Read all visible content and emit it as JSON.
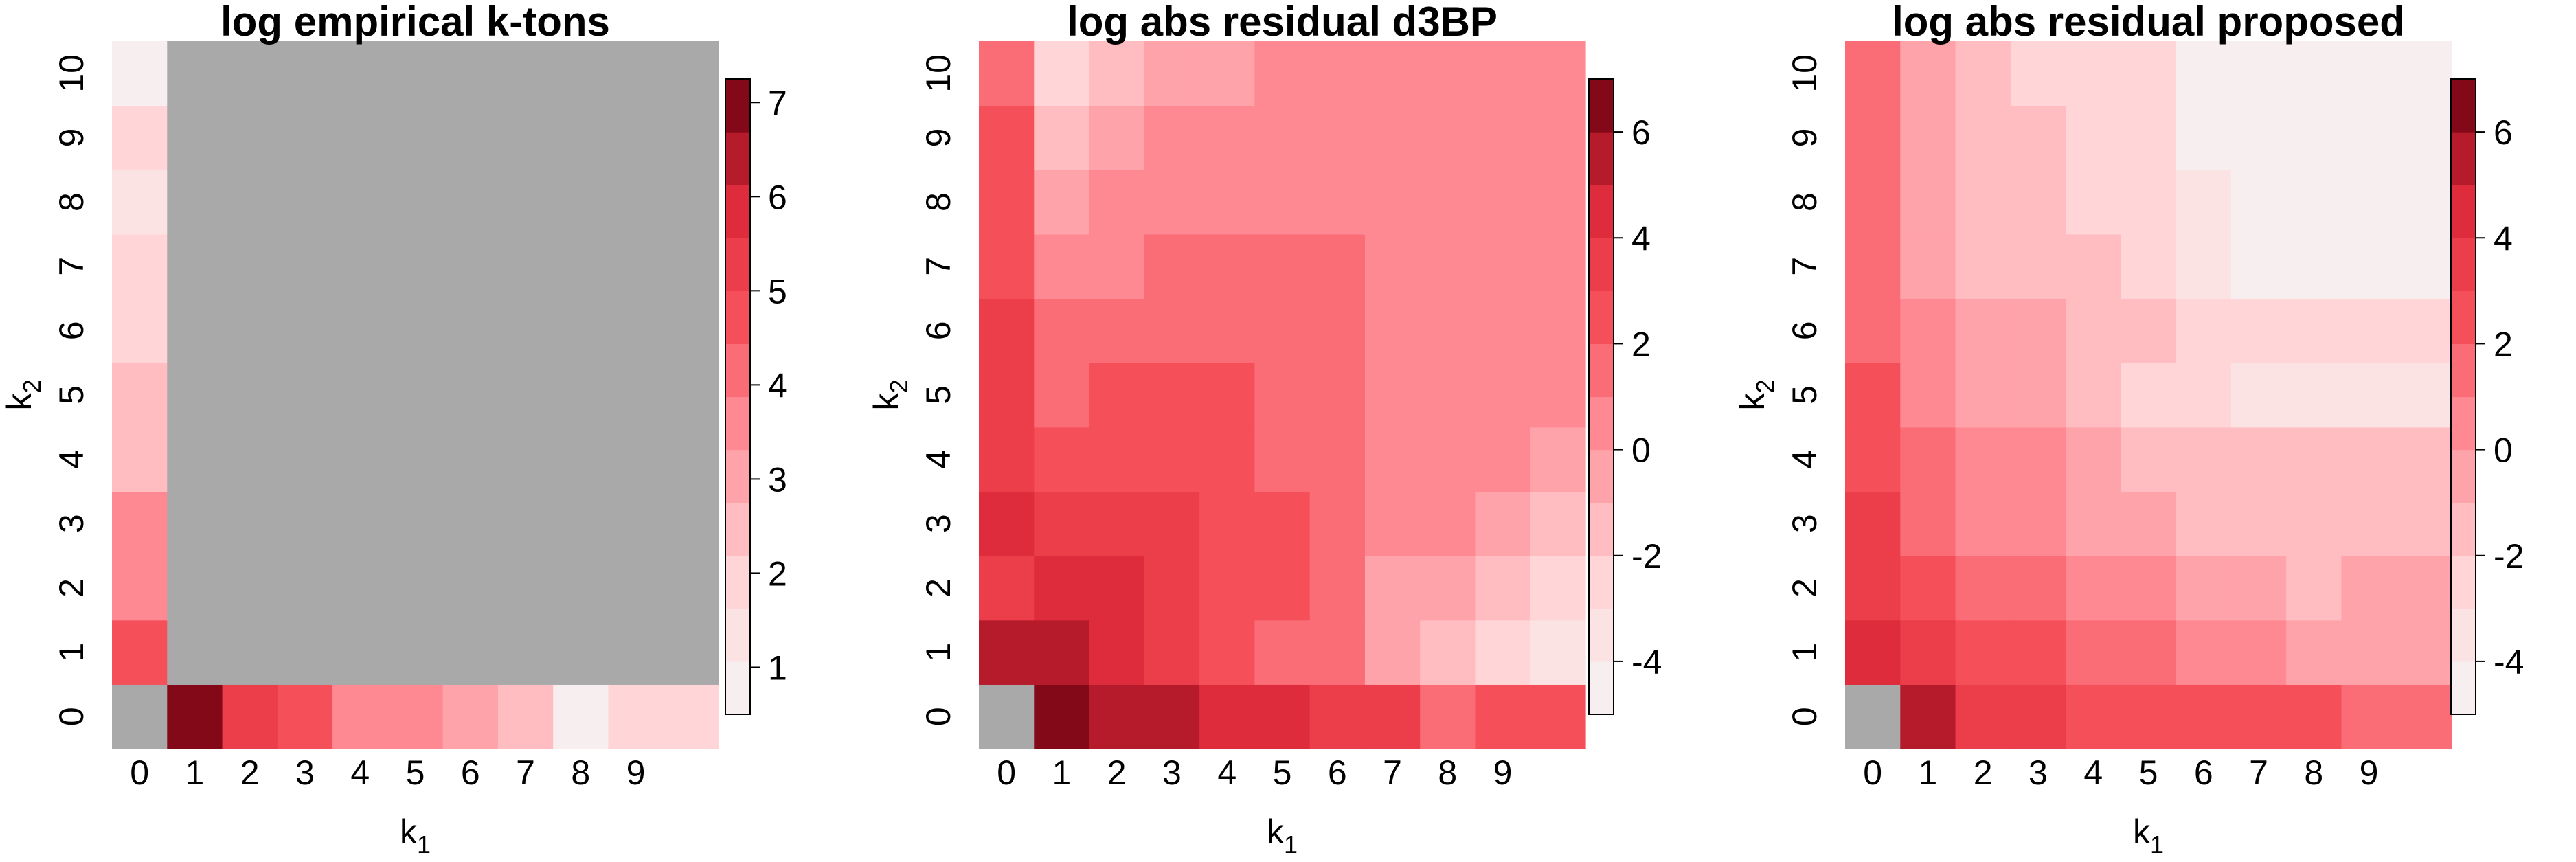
{
  "chart_data": [
    {
      "type": "heatmap",
      "title": "log empirical k-tons",
      "xlabel": "k",
      "xlabel_sub": "1",
      "ylabel": "k",
      "ylabel_sub": "2",
      "x_ticks": [
        "0",
        "1",
        "2",
        "3",
        "4",
        "5",
        "6",
        "7",
        "8",
        "9"
      ],
      "y_ticks": [
        "0",
        "1",
        "2",
        "3",
        "4",
        "5",
        "6",
        "7",
        "8",
        "9",
        "10"
      ],
      "colorbar": {
        "min": 0.5,
        "max": 7.25,
        "ticks": [
          1,
          2,
          3,
          4,
          5,
          6,
          7
        ],
        "tick_labels": [
          "1",
          "2",
          "3",
          "4",
          "5",
          "6",
          "7"
        ]
      },
      "na_color": "#a9a9a9",
      "cells": [
        {
          "x": 0,
          "y": 0,
          "value": null
        },
        {
          "x": 1,
          "y": 0,
          "value": 7.0
        },
        {
          "x": 2,
          "y": 0,
          "value": 5.4
        },
        {
          "x": 3,
          "y": 0,
          "value": 4.9
        },
        {
          "x": 4,
          "y": 0,
          "value": 3.8
        },
        {
          "x": 5,
          "y": 0,
          "value": 3.8
        },
        {
          "x": 6,
          "y": 0,
          "value": 3.2
        },
        {
          "x": 7,
          "y": 0,
          "value": 2.6
        },
        {
          "x": 8,
          "y": 0,
          "value": 0.7
        },
        {
          "x": 9,
          "y": 0,
          "value": 2.0
        },
        {
          "x": 10,
          "y": 0,
          "value": 2.0
        },
        {
          "x": 0,
          "y": 1,
          "value": 4.8
        },
        {
          "x": 0,
          "y": 2,
          "value": 3.7
        },
        {
          "x": 0,
          "y": 3,
          "value": 3.7
        },
        {
          "x": 0,
          "y": 4,
          "value": 2.6
        },
        {
          "x": 0,
          "y": 5,
          "value": 2.6
        },
        {
          "x": 0,
          "y": 6,
          "value": 2.1
        },
        {
          "x": 0,
          "y": 7,
          "value": 2.1
        },
        {
          "x": 0,
          "y": 8,
          "value": 1.6
        },
        {
          "x": 0,
          "y": 9,
          "value": 2.1
        },
        {
          "x": 0,
          "y": 10,
          "value": 0.7
        },
        {
          "x": 1,
          "y": 1,
          "x2": 10,
          "y2": 10,
          "value": null
        }
      ]
    },
    {
      "type": "heatmap",
      "title": "log abs residual d3BP",
      "xlabel": "k",
      "xlabel_sub": "1",
      "ylabel": "k",
      "ylabel_sub": "2",
      "x_ticks": [
        "0",
        "1",
        "2",
        "3",
        "4",
        "5",
        "6",
        "7",
        "8",
        "9"
      ],
      "y_ticks": [
        "0",
        "1",
        "2",
        "3",
        "4",
        "5",
        "6",
        "7",
        "8",
        "9",
        "10"
      ],
      "colorbar": {
        "min": -5,
        "max": 7,
        "ticks": [
          -4,
          -2,
          0,
          2,
          4,
          6
        ],
        "tick_labels": [
          "-4",
          "-2",
          "0",
          "2",
          "4",
          "6"
        ]
      },
      "na_color": "#a9a9a9",
      "grid": [
        [
          null,
          6.5,
          5.5,
          5.5,
          4.5,
          4.5,
          3.5,
          3.5,
          1.5,
          2.5,
          2.5
        ],
        [
          5.5,
          5.0,
          4.5,
          3.5,
          2.5,
          1.5,
          1.5,
          -0.5,
          -1.5,
          -2.5,
          -3.5
        ],
        [
          3.5,
          4.5,
          4.5,
          3.5,
          2.5,
          2.5,
          1.5,
          -0.5,
          -0.5,
          -1.5,
          -2.5
        ],
        [
          4.5,
          3.5,
          3.5,
          3.5,
          2.5,
          2.5,
          1.5,
          0.5,
          0.5,
          -0.5,
          -1.5
        ],
        [
          3.5,
          2.5,
          2.5,
          2.5,
          2.5,
          1.5,
          1.5,
          0.5,
          0.5,
          0.5,
          -0.5
        ],
        [
          3.5,
          1.5,
          2.5,
          2.5,
          2.5,
          1.5,
          1.5,
          0.5,
          0.5,
          0.5,
          0.5
        ],
        [
          3.5,
          1.5,
          1.5,
          1.5,
          1.5,
          1.5,
          1.5,
          0.5,
          0.5,
          0.5,
          0.5
        ],
        [
          2.5,
          0.5,
          0.5,
          1.5,
          1.5,
          1.5,
          1.5,
          0.5,
          0.5,
          0.5,
          0.5
        ],
        [
          2.5,
          -0.5,
          0.5,
          0.5,
          0.5,
          0.5,
          0.5,
          0.5,
          0.5,
          0.5,
          0.5
        ],
        [
          2.5,
          -1.5,
          -0.5,
          0.5,
          0.5,
          0.5,
          0.5,
          0.5,
          0.5,
          0.5,
          0.5
        ],
        [
          1.5,
          -2.5,
          -1.5,
          -0.5,
          -0.5,
          0.5,
          0.5,
          0.5,
          0.5,
          0.5,
          0.5
        ]
      ]
    },
    {
      "type": "heatmap",
      "title": "log abs residual proposed",
      "xlabel": "k",
      "xlabel_sub": "1",
      "ylabel": "k",
      "ylabel_sub": "2",
      "x_ticks": [
        "0",
        "1",
        "2",
        "3",
        "4",
        "5",
        "6",
        "7",
        "8",
        "9"
      ],
      "y_ticks": [
        "0",
        "1",
        "2",
        "3",
        "4",
        "5",
        "6",
        "7",
        "8",
        "9",
        "10"
      ],
      "colorbar": {
        "min": -5,
        "max": 7,
        "ticks": [
          -4,
          -2,
          0,
          2,
          4,
          6
        ],
        "tick_labels": [
          "-4",
          "-2",
          "0",
          "2",
          "4",
          "6"
        ]
      },
      "na_color": "#a9a9a9",
      "grid": [
        [
          null,
          5.5,
          3.5,
          3.5,
          2.5,
          2.5,
          2.5,
          2.5,
          2.5,
          1.5,
          1.5
        ],
        [
          4.5,
          3.5,
          2.5,
          2.5,
          1.5,
          1.5,
          0.5,
          0.5,
          -0.5,
          -0.5,
          -0.5
        ],
        [
          3.5,
          2.5,
          1.5,
          1.5,
          0.5,
          0.5,
          -0.5,
          -0.5,
          -1.5,
          -0.5,
          -0.5
        ],
        [
          3.5,
          1.5,
          0.5,
          0.5,
          -0.5,
          -0.5,
          -1.5,
          -1.5,
          -1.5,
          -1.5,
          -1.5
        ],
        [
          2.5,
          1.5,
          0.5,
          0.5,
          -0.5,
          -1.5,
          -1.5,
          -1.5,
          -1.5,
          -1.5,
          -1.5
        ],
        [
          2.5,
          0.5,
          -0.5,
          -0.5,
          -1.5,
          -2.5,
          -2.5,
          -3.5,
          -3.5,
          -3.5,
          -3.5
        ],
        [
          1.5,
          0.5,
          -0.5,
          -0.5,
          -1.5,
          -1.5,
          -2.5,
          -2.5,
          -2.5,
          -2.5,
          -2.5
        ],
        [
          1.5,
          -0.5,
          -1.5,
          -1.5,
          -1.5,
          -2.5,
          -3.5,
          -4.5,
          -4.5,
          -4.5,
          -4.5
        ],
        [
          1.5,
          -0.5,
          -1.5,
          -1.5,
          -2.5,
          -2.5,
          -3.5,
          -4.5,
          -4.5,
          -4.5,
          -4.5
        ],
        [
          1.5,
          -0.5,
          -1.5,
          -1.5,
          -2.5,
          -2.5,
          -4.5,
          -4.5,
          -4.5,
          -4.5,
          -4.5
        ],
        [
          1.5,
          -0.5,
          -1.5,
          -2.5,
          -2.5,
          -2.5,
          -4.5,
          -4.5,
          -4.5,
          -4.5,
          -4.5
        ]
      ]
    }
  ]
}
